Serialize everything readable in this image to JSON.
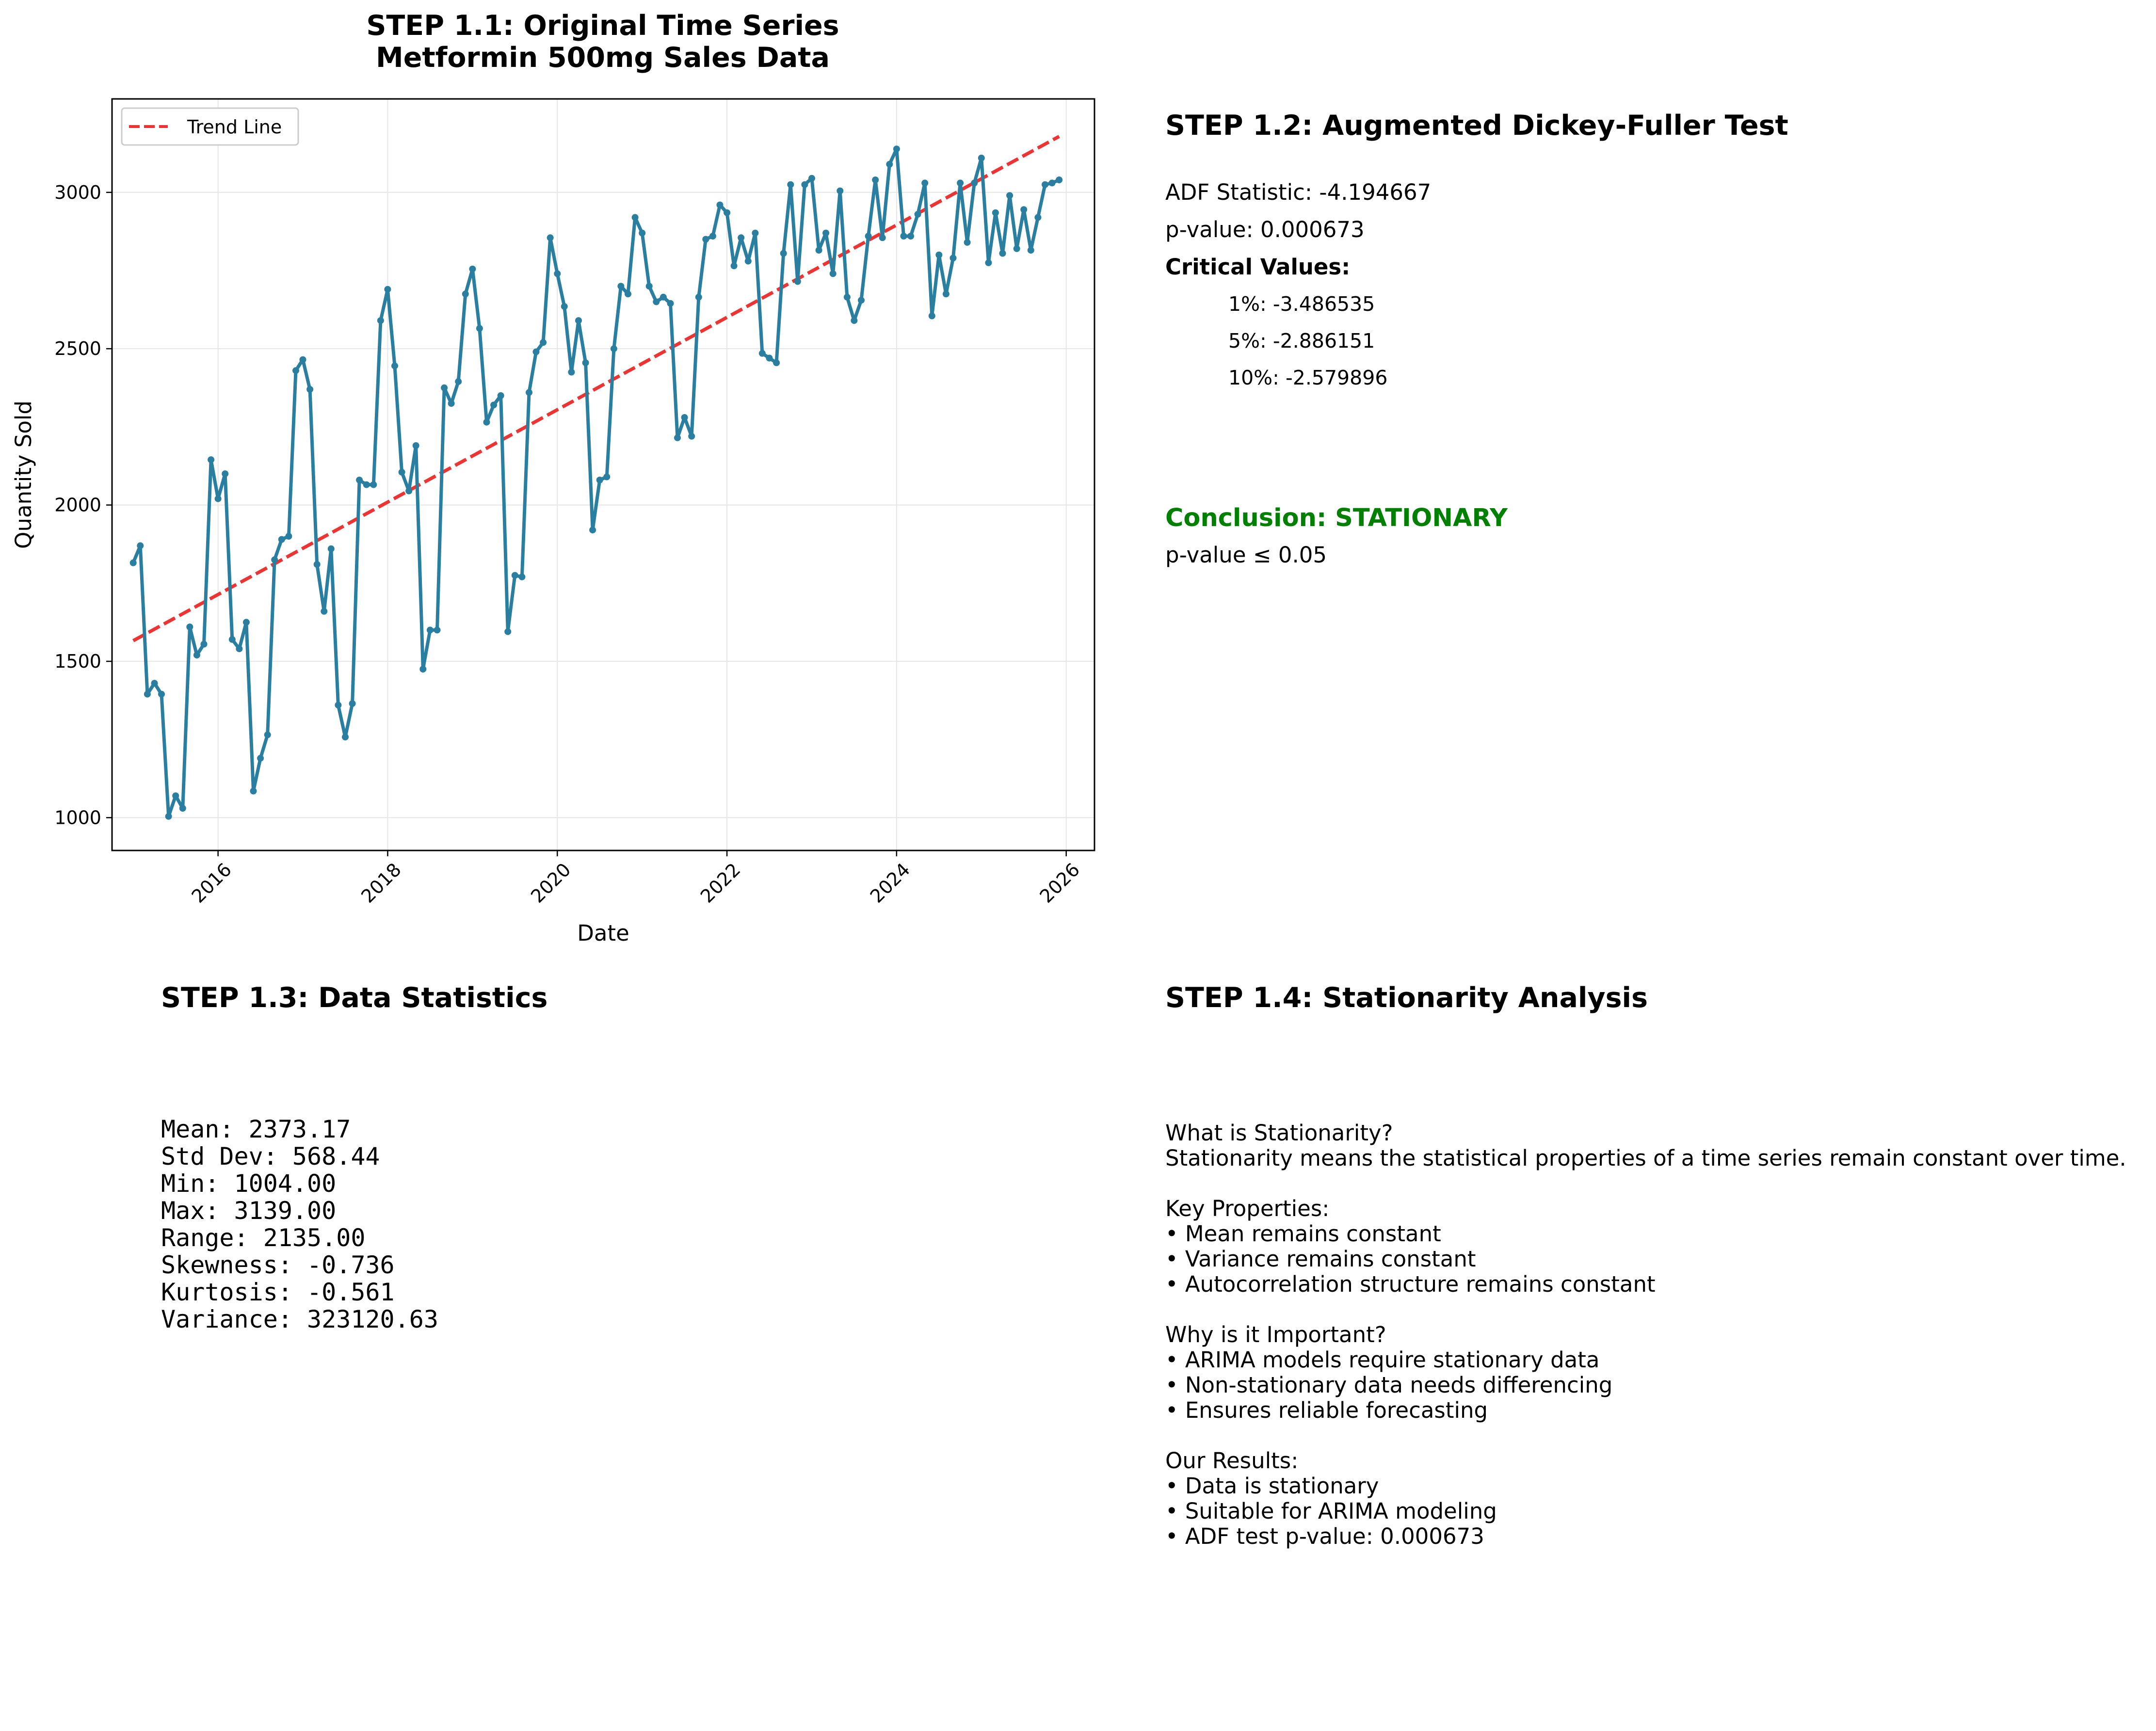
{
  "chart_data": {
    "type": "line",
    "title_line1": "STEP 1.1: Original Time Series",
    "title_line2": "Metformin 500mg Sales Data",
    "xlabel": "Date",
    "ylabel": "Quantity Sold",
    "x_ticks": [
      "2016",
      "2018",
      "2020",
      "2022",
      "2024",
      "2026"
    ],
    "y_ticks": [
      1000,
      1500,
      2000,
      2500,
      3000
    ],
    "xlim": [
      "2014-10-01",
      "2026-05-01"
    ],
    "ylim": [
      895,
      3299
    ],
    "grid": true,
    "legend": {
      "placement": "top-left",
      "entries": [
        "Trend Line"
      ]
    },
    "series": [
      {
        "style": "line-with-markers",
        "color": "#2a7fa0",
        "x_start": "2015-01",
        "frequency": "monthly",
        "values": [
          1815,
          1870,
          1395,
          1430,
          1395,
          1004,
          1070,
          1030,
          1610,
          1520,
          1555,
          2145,
          2020,
          2100,
          1570,
          1540,
          1625,
          1085,
          1190,
          1265,
          1825,
          1890,
          1900,
          2430,
          2465,
          2370,
          1810,
          1660,
          1860,
          1360,
          1258,
          1365,
          2080,
          2065,
          2065,
          2590,
          2690,
          2445,
          2105,
          2045,
          2190,
          1475,
          1600,
          1600,
          2375,
          2325,
          2395,
          2675,
          2755,
          2565,
          2265,
          2320,
          2350,
          1595,
          1775,
          1770,
          2360,
          2490,
          2520,
          2855,
          2740,
          2635,
          2425,
          2590,
          2455,
          1920,
          2080,
          2090,
          2500,
          2700,
          2675,
          2920,
          2870,
          2700,
          2650,
          2665,
          2645,
          2215,
          2280,
          2220,
          2665,
          2850,
          2860,
          2960,
          2935,
          2765,
          2855,
          2780,
          2870,
          2485,
          2470,
          2455,
          2805,
          3025,
          2715,
          3025,
          3045,
          2815,
          2870,
          2740,
          3005,
          2665,
          2590,
          2655,
          2860,
          3040,
          2855,
          3090,
          3139,
          2860,
          2860,
          2930,
          3030,
          2605,
          2800,
          2675,
          2790,
          3030,
          2840,
          3030,
          3110,
          2775,
          2935,
          2805,
          2990,
          2820,
          2945,
          2815,
          2920,
          3025,
          3030,
          3040
        ]
      },
      {
        "name": "Trend Line",
        "style": "dashed",
        "color": "#ee3333",
        "x": [
          "2015-01",
          "2025-12"
        ],
        "values": [
          1566,
          3179
        ]
      }
    ]
  },
  "adf": {
    "title": "STEP 1.2: Augmented Dickey-Fuller Test",
    "statistic": "ADF Statistic: -4.194667",
    "p_value": "p-value: 0.000673",
    "critical_header": "Critical Values:",
    "critical": [
      "1%: -3.486535",
      "5%: -2.886151",
      "10%: -2.579896"
    ],
    "conclusion": "Conclusion: STATIONARY",
    "conclusion_color": "#008000",
    "condition": "p-value ≤ 0.05"
  },
  "stats": {
    "title": "STEP 1.3: Data Statistics",
    "lines": [
      "Mean: 2373.17",
      "Std Dev: 568.44",
      "Min: 1004.00",
      "Max: 3139.00",
      "Range: 2135.00",
      "Skewness: -0.736",
      "Kurtosis: -0.561",
      "Variance: 323120.63"
    ]
  },
  "analysis": {
    "title": "STEP 1.4: Stationarity Analysis",
    "lines": [
      "What is Stationarity?",
      "Stationarity means the statistical properties of a time series remain constant over time.",
      "",
      "Key Properties:",
      "• Mean remains constant",
      "• Variance remains constant",
      "• Autocorrelation structure remains constant",
      "",
      "Why is it Important?",
      "• ARIMA models require stationary data",
      "• Non-stationary data needs differencing",
      "• Ensures reliable forecasting",
      "",
      "Our Results:",
      "• Data is stationary",
      "• Suitable for ARIMA modeling",
      "• ADF test p-value: 0.000673"
    ]
  }
}
